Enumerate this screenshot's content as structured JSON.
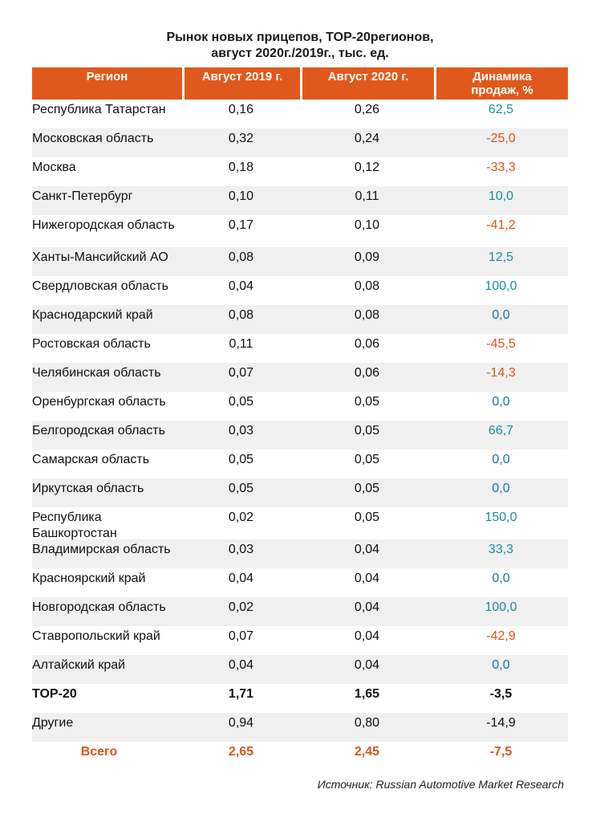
{
  "title": {
    "line1": "Рынок новых прицепов, TOP-20регионов,",
    "line2": "август 2020г./2019г., тыс. ед."
  },
  "table": {
    "headers": [
      "Регион",
      "Август 2019 г.",
      "Август 2020 г.",
      "Динамика продаж, %"
    ],
    "rows": [
      {
        "region": "Республика Татарстан",
        "y2019": "0,16",
        "y2020": "0,26",
        "change": "62,5",
        "trend": "pos"
      },
      {
        "region": "Московская область",
        "y2019": "0,32",
        "y2020": "0,24",
        "change": "-25,0",
        "trend": "neg"
      },
      {
        "region": "Москва",
        "y2019": "0,18",
        "y2020": "0,12",
        "change": "-33,3",
        "trend": "neg"
      },
      {
        "region": "Санкт-Петербург",
        "y2019": "0,10",
        "y2020": "0,11",
        "change": "10,0",
        "trend": "pos"
      },
      {
        "region": "Нижегородская область",
        "y2019": "0,17",
        "y2020": "0,10",
        "change": "-41,2",
        "trend": "neg"
      },
      {
        "region": "Ханты-Мансийский АО",
        "y2019": "0,08",
        "y2020": "0,09",
        "change": "12,5",
        "trend": "pos"
      },
      {
        "region": "Свердловская область",
        "y2019": "0,04",
        "y2020": "0,08",
        "change": "100,0",
        "trend": "pos"
      },
      {
        "region": "Краснодарский край",
        "y2019": "0,08",
        "y2020": "0,08",
        "change": "0,0",
        "trend": "zero"
      },
      {
        "region": "Ростовская область",
        "y2019": "0,11",
        "y2020": "0,06",
        "change": "-45,5",
        "trend": "neg"
      },
      {
        "region": "Челябинская область",
        "y2019": "0,07",
        "y2020": "0,06",
        "change": "-14,3",
        "trend": "neg"
      },
      {
        "region": "Оренбургская область",
        "y2019": "0,05",
        "y2020": "0,05",
        "change": "0,0",
        "trend": "zero"
      },
      {
        "region": "Белгородская область",
        "y2019": "0,03",
        "y2020": "0,05",
        "change": "66,7",
        "trend": "pos"
      },
      {
        "region": "Самарская область",
        "y2019": "0,05",
        "y2020": "0,05",
        "change": "0,0",
        "trend": "zero"
      },
      {
        "region": "Иркутская область",
        "y2019": "0,05",
        "y2020": "0,05",
        "change": "0,0",
        "trend": "zero"
      },
      {
        "region": "Республика Башкортостан",
        "y2019": "0,02",
        "y2020": "0,05",
        "change": "150,0",
        "trend": "pos"
      },
      {
        "region": "Владимирская область",
        "y2019": "0,03",
        "y2020": "0,04",
        "change": "33,3",
        "trend": "pos"
      },
      {
        "region": "Красноярский край",
        "y2019": "0,04",
        "y2020": "0,04",
        "change": "0,0",
        "trend": "zero"
      },
      {
        "region": "Новгородская область",
        "y2019": "0,02",
        "y2020": "0,04",
        "change": "100,0",
        "trend": "pos"
      },
      {
        "region": "Ставропольский край",
        "y2019": "0,07",
        "y2020": "0,04",
        "change": "-42,9",
        "trend": "neg"
      },
      {
        "region": "Алтайский край",
        "y2019": "0,04",
        "y2020": "0,04",
        "change": "0,0",
        "trend": "zero"
      }
    ],
    "top20": {
      "region": "TOP-20",
      "y2019": "1,71",
      "y2020": "1,65",
      "change": "-3,5"
    },
    "others": {
      "region": "Другие",
      "y2019": "0,94",
      "y2020": "0,80",
      "change": "-14,9"
    },
    "total": {
      "region": "Всего",
      "y2019": "2,65",
      "y2020": "2,45",
      "change": "-7,5"
    }
  },
  "colors": {
    "header_bg": "#e0591c",
    "positive": "#1a8fa0",
    "negative": "#d9541a",
    "zero": "#1b6fa8",
    "total": "#d9541a"
  },
  "source": "Источник: Russian Automotive Market Research"
}
